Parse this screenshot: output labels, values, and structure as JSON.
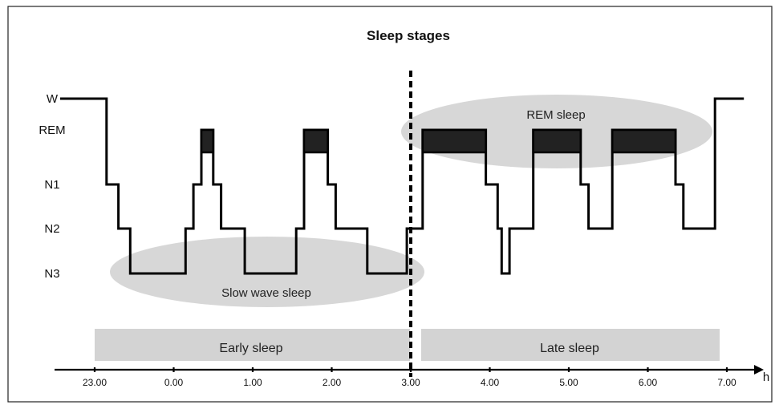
{
  "chart_data": {
    "type": "line",
    "title": "Sleep stages",
    "xlabel": "h",
    "ylabel": "",
    "stages": [
      "W",
      "REM",
      "N1",
      "N2",
      "N3"
    ],
    "x_ticks": [
      "23.00",
      "0.00",
      "1.00",
      "2.00",
      "3.00",
      "4.00",
      "5.00",
      "6.00",
      "7.00"
    ],
    "xlim": [
      "22.70",
      "7.40"
    ],
    "hypnogram": [
      {
        "time": "22.70",
        "stage": "W"
      },
      {
        "time": "23.15",
        "stage": "N1"
      },
      {
        "time": "23.30",
        "stage": "N2"
      },
      {
        "time": "23.45",
        "stage": "N3"
      },
      {
        "time": "0.15",
        "stage": "N2"
      },
      {
        "time": "0.25",
        "stage": "N1"
      },
      {
        "time": "0.35",
        "stage": "REM"
      },
      {
        "time": "0.50",
        "stage": "N1"
      },
      {
        "time": "0.60",
        "stage": "N2"
      },
      {
        "time": "0.90",
        "stage": "N3"
      },
      {
        "time": "1.55",
        "stage": "N2"
      },
      {
        "time": "1.65",
        "stage": "N1"
      },
      {
        "time": "1.65",
        "stage": "REM"
      },
      {
        "time": "1.95",
        "stage": "N1"
      },
      {
        "time": "2.05",
        "stage": "N2"
      },
      {
        "time": "2.45",
        "stage": "N3"
      },
      {
        "time": "2.95",
        "stage": "N2"
      },
      {
        "time": "3.15",
        "stage": "REM"
      },
      {
        "time": "3.95",
        "stage": "N1"
      },
      {
        "time": "4.10",
        "stage": "N2"
      },
      {
        "time": "4.15",
        "stage": "N3"
      },
      {
        "time": "4.25",
        "stage": "N2"
      },
      {
        "time": "4.55",
        "stage": "REM"
      },
      {
        "time": "5.15",
        "stage": "N1"
      },
      {
        "time": "5.25",
        "stage": "N2"
      },
      {
        "time": "5.55",
        "stage": "REM"
      },
      {
        "time": "6.35",
        "stage": "N1"
      },
      {
        "time": "6.45",
        "stage": "N2"
      },
      {
        "time": "6.85",
        "stage": "W"
      },
      {
        "time": "7.20",
        "stage": "W"
      }
    ],
    "rem_periods": [
      {
        "start": "0.35",
        "end": "0.50"
      },
      {
        "start": "1.65",
        "end": "1.95"
      },
      {
        "start": "3.15",
        "end": "3.95"
      },
      {
        "start": "4.55",
        "end": "5.15"
      },
      {
        "start": "5.55",
        "end": "6.35"
      }
    ],
    "divider_time": "3.00",
    "annotations": {
      "slow_wave": "Slow wave sleep",
      "rem_sleep": "REM sleep"
    },
    "phases": {
      "early": "Early sleep",
      "late": "Late sleep"
    }
  }
}
